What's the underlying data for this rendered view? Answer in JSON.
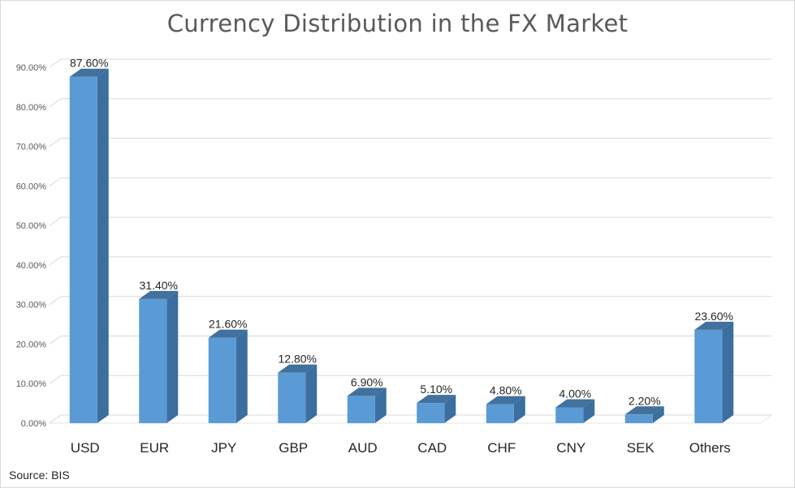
{
  "chart_data": {
    "type": "bar",
    "title": "Currency Distribution in the FX Market",
    "categories": [
      "USD",
      "EUR",
      "JPY",
      "GBP",
      "AUD",
      "CAD",
      "CHF",
      "CNY",
      "SEK",
      "Others"
    ],
    "values": [
      87.6,
      31.4,
      21.6,
      12.8,
      6.9,
      5.1,
      4.8,
      4.0,
      2.2,
      23.6
    ],
    "data_labels": [
      "87.60%",
      "31.40%",
      "21.60%",
      "12.80%",
      "6.90%",
      "5.10%",
      "4.80%",
      "4.00%",
      "2.20%",
      "23.60%"
    ],
    "ylim": [
      0,
      90
    ],
    "yticks": [
      0,
      10,
      20,
      30,
      40,
      50,
      60,
      70,
      80,
      90
    ],
    "ytick_labels": [
      "0.00%",
      "10.00%",
      "20.00%",
      "30.00%",
      "40.00%",
      "50.00%",
      "60.00%",
      "70.00%",
      "80.00%",
      "90.00%"
    ],
    "grid": true,
    "style": "3d-bar",
    "colors": {
      "bar_front": "#5b9bd5",
      "bar_side": "#3a6f9f",
      "bar_top": "#41719c",
      "grid": "#d9d9d9"
    }
  },
  "footer": {
    "source": "Source: BIS"
  }
}
